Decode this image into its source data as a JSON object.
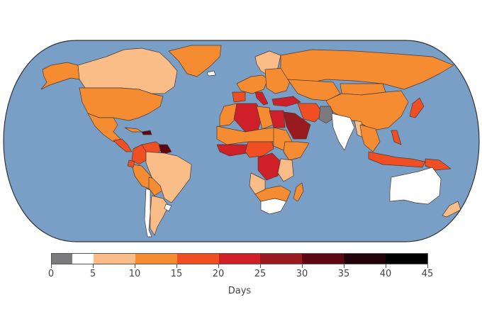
{
  "map": {
    "projection": "world-equal-area-rounded",
    "ocean_color": "#7a9fc6",
    "frame_color": "#333333",
    "regions": [
      {
        "name": "Alaska",
        "bin": 3
      },
      {
        "name": "Canada",
        "bin": 2
      },
      {
        "name": "Greenland",
        "bin": 3
      },
      {
        "name": "Iceland",
        "bin": 1
      },
      {
        "name": "United States",
        "bin": 3
      },
      {
        "name": "Mexico",
        "bin": 3
      },
      {
        "name": "Central America",
        "bin": 4
      },
      {
        "name": "Cuba",
        "bin": 3
      },
      {
        "name": "Hispaniola",
        "bin": 7
      },
      {
        "name": "Colombia",
        "bin": 4
      },
      {
        "name": "Venezuela",
        "bin": 4
      },
      {
        "name": "Guianas",
        "bin": 7
      },
      {
        "name": "Peru",
        "bin": 3
      },
      {
        "name": "Ecuador",
        "bin": 4
      },
      {
        "name": "Bolivia",
        "bin": 3
      },
      {
        "name": "Brazil",
        "bin": 2
      },
      {
        "name": "Argentina",
        "bin": 2
      },
      {
        "name": "Chile",
        "bin": 1
      },
      {
        "name": "Uruguay",
        "bin": 1
      },
      {
        "name": "Scandinavia",
        "bin": 2
      },
      {
        "name": "Western Europe",
        "bin": 3
      },
      {
        "name": "Spain",
        "bin": 4
      },
      {
        "name": "Italy",
        "bin": 5
      },
      {
        "name": "Eastern Europe",
        "bin": 3
      },
      {
        "name": "Turkey",
        "bin": 5
      },
      {
        "name": "Russia",
        "bin": 3
      },
      {
        "name": "Kazakhstan & Central Asia",
        "bin": 3
      },
      {
        "name": "Mongolia",
        "bin": 3
      },
      {
        "name": "China",
        "bin": 3
      },
      {
        "name": "Japan",
        "bin": 4
      },
      {
        "name": "Iran",
        "bin": 4
      },
      {
        "name": "Pakistan",
        "bin": 0
      },
      {
        "name": "India",
        "bin": 1
      },
      {
        "name": "Myanmar",
        "bin": 2
      },
      {
        "name": "Southeast Asia",
        "bin": 3
      },
      {
        "name": "Indonesia",
        "bin": 4
      },
      {
        "name": "Philippines",
        "bin": 4
      },
      {
        "name": "Papua New Guinea",
        "bin": 4
      },
      {
        "name": "Australia",
        "bin": 1
      },
      {
        "name": "New Zealand",
        "bin": 2
      },
      {
        "name": "Morocco & Western Sahara",
        "bin": 3
      },
      {
        "name": "Algeria",
        "bin": 5
      },
      {
        "name": "Libya",
        "bin": 3
      },
      {
        "name": "Egypt",
        "bin": 5
      },
      {
        "name": "Saudi Arabia",
        "bin": 6
      },
      {
        "name": "Sahel",
        "bin": 3
      },
      {
        "name": "West Africa coast",
        "bin": 5
      },
      {
        "name": "Sudan",
        "bin": 3
      },
      {
        "name": "Ethiopia & Horn",
        "bin": 3
      },
      {
        "name": "Central Africa",
        "bin": 4
      },
      {
        "name": "DR Congo",
        "bin": 5
      },
      {
        "name": "East Africa",
        "bin": 2
      },
      {
        "name": "Angola",
        "bin": 2
      },
      {
        "name": "Southern Africa",
        "bin": 3
      },
      {
        "name": "South Africa",
        "bin": 1
      },
      {
        "name": "Madagascar",
        "bin": 3
      }
    ]
  },
  "chart_data": {
    "type": "choropleth",
    "title": "",
    "legend_title": "Days",
    "legend_ticks": [
      0,
      5,
      10,
      15,
      20,
      25,
      30,
      35,
      40,
      45
    ],
    "bins": [
      {
        "range": [
          0,
          2.5
        ],
        "color": "#7b7b7d",
        "label": "0–2.5"
      },
      {
        "range": [
          2.5,
          5
        ],
        "color": "#ffffff",
        "label": "2.5–5"
      },
      {
        "range": [
          5,
          10
        ],
        "color": "#fbbd88",
        "label": "5–10"
      },
      {
        "range": [
          10,
          15
        ],
        "color": "#f68c31",
        "label": "10–15"
      },
      {
        "range": [
          15,
          20
        ],
        "color": "#f04e23",
        "label": "15–20"
      },
      {
        "range": [
          20,
          25
        ],
        "color": "#cf2029",
        "label": "20–25"
      },
      {
        "range": [
          25,
          30
        ],
        "color": "#9a1b1f",
        "label": "25–30"
      },
      {
        "range": [
          30,
          35
        ],
        "color": "#5c0711",
        "label": "30–35"
      },
      {
        "range": [
          35,
          40
        ],
        "color": "#22030a",
        "label": "35–40"
      },
      {
        "range": [
          40,
          45
        ],
        "color": "#000000",
        "label": "40–45"
      }
    ],
    "legend_position": "bottom"
  },
  "legend": {
    "title": "Days",
    "ticks": [
      "0",
      "5",
      "10",
      "15",
      "20",
      "25",
      "30",
      "35",
      "40",
      "45"
    ]
  }
}
